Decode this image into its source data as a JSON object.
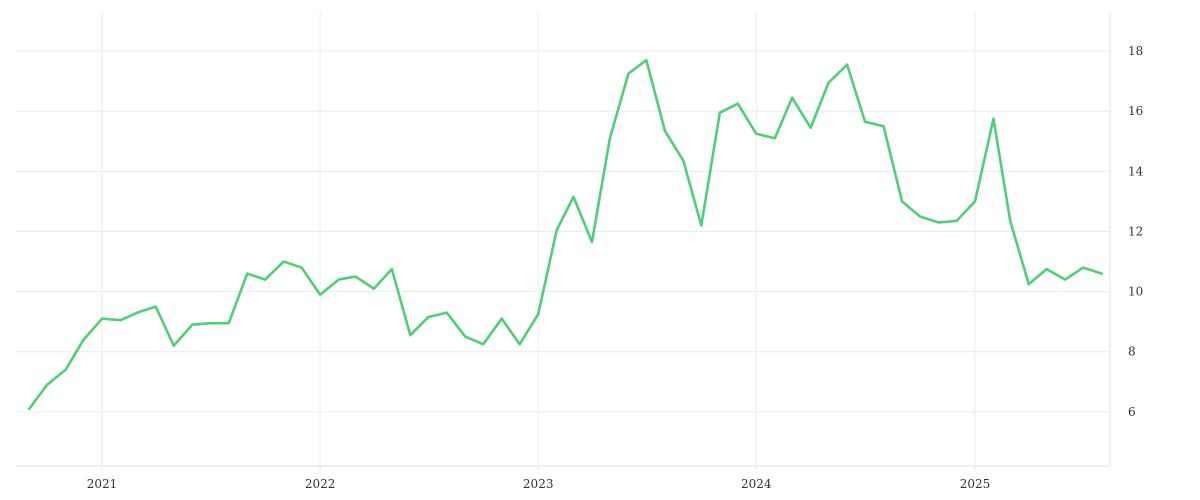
{
  "chart_data": {
    "type": "line",
    "title": "",
    "xlabel": "",
    "ylabel": "",
    "x_tick_labels": [
      "2021",
      "2022",
      "2023",
      "2024",
      "2025"
    ],
    "x_tick_dates": [
      "2021-01-01",
      "2022-01-01",
      "2023-01-01",
      "2024-01-01",
      "2025-01-01"
    ],
    "y_ticks": [
      6,
      8,
      10,
      12,
      14,
      16,
      18
    ],
    "xlim": [
      "2020-08-10",
      "2025-08-15"
    ],
    "ylim": [
      4.2,
      19.3
    ],
    "y_axis_side": "right",
    "grid": true,
    "legend": "none",
    "series_color": "#4fcf78",
    "series": [
      {
        "x": [
          "2020-09-01",
          "2020-10-01",
          "2020-11-01",
          "2020-12-01",
          "2021-01-01",
          "2021-02-01",
          "2021-03-01",
          "2021-04-01",
          "2021-05-01",
          "2021-06-01",
          "2021-07-01",
          "2021-08-01",
          "2021-09-01",
          "2021-10-01",
          "2021-11-01",
          "2021-12-01",
          "2022-01-01",
          "2022-02-01",
          "2022-03-01",
          "2022-04-01",
          "2022-05-01",
          "2022-06-01",
          "2022-07-01",
          "2022-08-01",
          "2022-09-01",
          "2022-10-01",
          "2022-11-01",
          "2022-12-01",
          "2023-01-01",
          "2023-02-01",
          "2023-03-01",
          "2023-04-01",
          "2023-05-01",
          "2023-06-01",
          "2023-07-01",
          "2023-08-01",
          "2023-09-01",
          "2023-10-01",
          "2023-11-01",
          "2023-12-01",
          "2024-01-01",
          "2024-02-01",
          "2024-03-01",
          "2024-04-01",
          "2024-05-01",
          "2024-06-01",
          "2024-07-01",
          "2024-08-01",
          "2024-09-01",
          "2024-10-01",
          "2024-11-01",
          "2024-12-01",
          "2025-01-01",
          "2025-02-01",
          "2025-03-01",
          "2025-04-01",
          "2025-05-01",
          "2025-06-01",
          "2025-07-01",
          "2025-08-01"
        ],
        "y": [
          6.1,
          6.9,
          7.4,
          8.4,
          9.1,
          9.05,
          9.3,
          9.5,
          8.2,
          8.9,
          8.95,
          8.95,
          10.6,
          10.4,
          11.0,
          10.8,
          9.9,
          10.4,
          10.5,
          10.1,
          10.75,
          8.55,
          9.15,
          9.3,
          8.5,
          8.25,
          9.1,
          8.25,
          9.25,
          12.05,
          13.15,
          11.65,
          15.1,
          17.25,
          17.7,
          15.35,
          14.35,
          12.2,
          15.95,
          16.25,
          15.25,
          15.1,
          16.45,
          15.45,
          16.95,
          17.55,
          15.65,
          15.5,
          13.0,
          12.5,
          12.3,
          12.35,
          13.0,
          15.75,
          12.35,
          10.25,
          10.75,
          10.4,
          10.8,
          10.6
        ]
      }
    ]
  }
}
